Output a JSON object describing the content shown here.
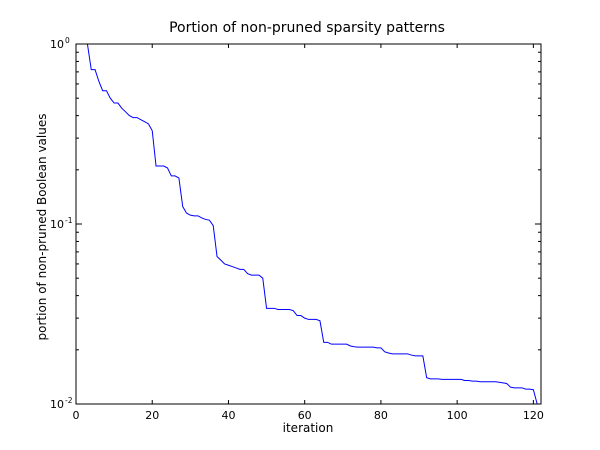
{
  "chart_data": {
    "type": "line",
    "title": "Portion of non-pruned sparsity patterns",
    "xlabel": "iteration",
    "ylabel": "portion of non-pruned Boolean values",
    "xlim": [
      0,
      122
    ],
    "ylim": [
      0.01,
      1.0
    ],
    "yscale": "log",
    "grid": false,
    "line_color": "#0000ff",
    "x_ticks": [
      {
        "value": 0,
        "label": "0"
      },
      {
        "value": 20,
        "label": "20"
      },
      {
        "value": 40,
        "label": "40"
      },
      {
        "value": 60,
        "label": "60"
      },
      {
        "value": 80,
        "label": "80"
      },
      {
        "value": 100,
        "label": "100"
      },
      {
        "value": 120,
        "label": "120"
      }
    ],
    "y_ticks": [
      {
        "value": 1.0,
        "base": "10",
        "exp": "0"
      },
      {
        "value": 0.1,
        "base": "10",
        "exp": "-1"
      },
      {
        "value": 0.01,
        "base": "10",
        "exp": "-2"
      }
    ],
    "series": [
      {
        "x": [
          0,
          1,
          2,
          3,
          4,
          5,
          6,
          7,
          8,
          9,
          10,
          11,
          12,
          13,
          14,
          15,
          16,
          17,
          18,
          19,
          20,
          21,
          22,
          23,
          24,
          25,
          26,
          27,
          28,
          29,
          30,
          31,
          32,
          33,
          34,
          35,
          36,
          37,
          38,
          39,
          40,
          41,
          42,
          43,
          44,
          45,
          46,
          47,
          48,
          49,
          50,
          51,
          52,
          53,
          54,
          55,
          56,
          57,
          58,
          59,
          60,
          61,
          62,
          63,
          64,
          65,
          66,
          67,
          68,
          69,
          70,
          71,
          72,
          73,
          74,
          75,
          76,
          77,
          78,
          79,
          80,
          81,
          82,
          83,
          84,
          85,
          86,
          87,
          88,
          89,
          90,
          91,
          92,
          93,
          94,
          95,
          96,
          97,
          98,
          99,
          100,
          101,
          102,
          103,
          104,
          105,
          106,
          107,
          108,
          109,
          110,
          111,
          112,
          113,
          114,
          115,
          116,
          117,
          118,
          119,
          120,
          121,
          122
        ],
        "y": [
          1.0,
          1.0,
          1.0,
          1.0,
          0.72,
          0.72,
          0.62,
          0.55,
          0.55,
          0.5,
          0.47,
          0.47,
          0.44,
          0.42,
          0.4,
          0.39,
          0.39,
          0.38,
          0.37,
          0.36,
          0.33,
          0.21,
          0.21,
          0.21,
          0.205,
          0.185,
          0.185,
          0.18,
          0.125,
          0.115,
          0.112,
          0.111,
          0.111,
          0.108,
          0.106,
          0.105,
          0.098,
          0.066,
          0.063,
          0.06,
          0.059,
          0.058,
          0.057,
          0.056,
          0.056,
          0.053,
          0.052,
          0.052,
          0.052,
          0.05,
          0.034,
          0.034,
          0.034,
          0.0335,
          0.0335,
          0.0335,
          0.0335,
          0.033,
          0.031,
          0.031,
          0.03,
          0.0295,
          0.0295,
          0.0295,
          0.029,
          0.022,
          0.022,
          0.0215,
          0.0215,
          0.0215,
          0.0215,
          0.0215,
          0.021,
          0.0208,
          0.0207,
          0.0207,
          0.0207,
          0.0207,
          0.0207,
          0.0205,
          0.0205,
          0.0195,
          0.0192,
          0.019,
          0.019,
          0.019,
          0.019,
          0.019,
          0.0187,
          0.0185,
          0.0185,
          0.0185,
          0.014,
          0.0138,
          0.0138,
          0.0138,
          0.0137,
          0.0137,
          0.0137,
          0.0137,
          0.0137,
          0.0137,
          0.0135,
          0.0135,
          0.0134,
          0.0134,
          0.0133,
          0.0133,
          0.0133,
          0.0133,
          0.0133,
          0.0132,
          0.0131,
          0.013,
          0.0124,
          0.0123,
          0.0123,
          0.0123,
          0.0121,
          0.0121,
          0.012,
          0.01,
          0.01
        ]
      }
    ]
  }
}
